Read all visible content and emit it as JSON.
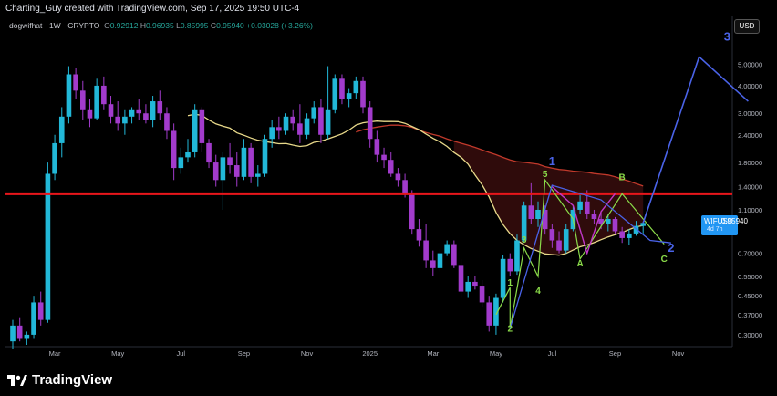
{
  "header": {
    "created_by": "Charting_Guy created with TradingView.com, Sep 17, 2025 19:50 UTC-4",
    "symbol": "dogwifhat · 1W · CRYPTO",
    "ohlc": {
      "o_label": "O",
      "o": "0.92912",
      "h_label": "H",
      "h": "0.96935",
      "l_label": "L",
      "l": "0.85995",
      "c_label": "C",
      "c": "0.95940",
      "change": "+0.03028 (+3.26%)"
    },
    "currency": "USD"
  },
  "price_tag": {
    "symbol": "WIFUSD",
    "price": "0.95940",
    "countdown": "4d 7h"
  },
  "footer": {
    "brand": "TradingView"
  },
  "colors": {
    "up": "#22b8d8",
    "down": "#a23bcc",
    "resistance": "#e8161b",
    "projection": "#4a63e8",
    "ma_fast": "#e8d98a",
    "ma_slow": "#c0392b",
    "wave_green": "#8bdc4a",
    "wave_magenta": "#c038c8"
  },
  "chart_data": {
    "type": "candlestick",
    "y_scale": "log",
    "ylim": [
      0.27,
      6.8
    ],
    "y_ticks": [
      "5.00000",
      "4.00000",
      "3.00000",
      "2.40000",
      "1.80000",
      "1.40000",
      "1.10000",
      "0.70000",
      "0.55000",
      "0.45000",
      "0.37000",
      "0.30000"
    ],
    "x_ticks": [
      "Mar",
      "May",
      "Jul",
      "Sep",
      "Nov",
      "2025",
      "Mar",
      "May",
      "Jul",
      "Sep",
      "Nov"
    ],
    "candles": [
      {
        "o": 0.28,
        "h": 0.35,
        "l": 0.26,
        "c": 0.33
      },
      {
        "o": 0.33,
        "h": 0.36,
        "l": 0.28,
        "c": 0.29
      },
      {
        "o": 0.29,
        "h": 0.31,
        "l": 0.27,
        "c": 0.3
      },
      {
        "o": 0.3,
        "h": 0.45,
        "l": 0.29,
        "c": 0.42
      },
      {
        "o": 0.42,
        "h": 0.47,
        "l": 0.33,
        "c": 0.35
      },
      {
        "o": 0.35,
        "h": 1.8,
        "l": 0.34,
        "c": 1.6
      },
      {
        "o": 1.6,
        "h": 2.4,
        "l": 1.5,
        "c": 2.2
      },
      {
        "o": 2.2,
        "h": 3.2,
        "l": 1.9,
        "c": 2.9
      },
      {
        "o": 2.9,
        "h": 4.9,
        "l": 2.7,
        "c": 4.5
      },
      {
        "o": 4.5,
        "h": 4.8,
        "l": 3.5,
        "c": 3.8
      },
      {
        "o": 3.8,
        "h": 4.2,
        "l": 2.8,
        "c": 3.1
      },
      {
        "o": 3.1,
        "h": 3.5,
        "l": 2.6,
        "c": 2.85
      },
      {
        "o": 2.85,
        "h": 4.3,
        "l": 2.8,
        "c": 4.0
      },
      {
        "o": 4.0,
        "h": 4.4,
        "l": 3.1,
        "c": 3.3
      },
      {
        "o": 3.3,
        "h": 3.6,
        "l": 2.7,
        "c": 2.9
      },
      {
        "o": 2.9,
        "h": 3.4,
        "l": 2.5,
        "c": 2.7
      },
      {
        "o": 2.7,
        "h": 3.1,
        "l": 2.4,
        "c": 2.9
      },
      {
        "o": 2.9,
        "h": 3.2,
        "l": 2.7,
        "c": 3.1
      },
      {
        "o": 3.1,
        "h": 3.5,
        "l": 2.8,
        "c": 3.0
      },
      {
        "o": 3.0,
        "h": 3.3,
        "l": 2.7,
        "c": 2.8
      },
      {
        "o": 2.8,
        "h": 3.6,
        "l": 2.6,
        "c": 3.4
      },
      {
        "o": 3.4,
        "h": 3.8,
        "l": 2.8,
        "c": 3.0
      },
      {
        "o": 3.0,
        "h": 3.2,
        "l": 2.3,
        "c": 2.5
      },
      {
        "o": 2.5,
        "h": 2.7,
        "l": 1.5,
        "c": 1.7
      },
      {
        "o": 1.7,
        "h": 2.1,
        "l": 1.6,
        "c": 1.9
      },
      {
        "o": 1.9,
        "h": 2.3,
        "l": 1.8,
        "c": 2.0
      },
      {
        "o": 2.0,
        "h": 3.3,
        "l": 1.9,
        "c": 3.1
      },
      {
        "o": 3.1,
        "h": 3.2,
        "l": 2.0,
        "c": 2.2
      },
      {
        "o": 2.2,
        "h": 2.3,
        "l": 1.7,
        "c": 1.8
      },
      {
        "o": 1.8,
        "h": 1.95,
        "l": 1.4,
        "c": 1.5
      },
      {
        "o": 1.5,
        "h": 2.0,
        "l": 1.1,
        "c": 1.9
      },
      {
        "o": 1.9,
        "h": 2.2,
        "l": 1.6,
        "c": 1.75
      },
      {
        "o": 1.75,
        "h": 2.0,
        "l": 1.4,
        "c": 1.55
      },
      {
        "o": 1.55,
        "h": 2.3,
        "l": 1.5,
        "c": 2.1
      },
      {
        "o": 2.1,
        "h": 2.2,
        "l": 1.45,
        "c": 1.55
      },
      {
        "o": 1.55,
        "h": 1.75,
        "l": 1.4,
        "c": 1.6
      },
      {
        "o": 1.6,
        "h": 2.4,
        "l": 1.55,
        "c": 2.3
      },
      {
        "o": 2.3,
        "h": 2.8,
        "l": 2.1,
        "c": 2.6
      },
      {
        "o": 2.6,
        "h": 2.9,
        "l": 2.3,
        "c": 2.5
      },
      {
        "o": 2.5,
        "h": 3.0,
        "l": 2.4,
        "c": 2.9
      },
      {
        "o": 2.9,
        "h": 3.1,
        "l": 2.5,
        "c": 2.7
      },
      {
        "o": 2.7,
        "h": 3.3,
        "l": 2.2,
        "c": 2.4
      },
      {
        "o": 2.4,
        "h": 3.0,
        "l": 2.3,
        "c": 2.85
      },
      {
        "o": 2.85,
        "h": 3.4,
        "l": 2.7,
        "c": 3.2
      },
      {
        "o": 3.2,
        "h": 3.5,
        "l": 2.2,
        "c": 2.4
      },
      {
        "o": 2.4,
        "h": 4.9,
        "l": 2.3,
        "c": 3.1
      },
      {
        "o": 3.1,
        "h": 4.5,
        "l": 3.0,
        "c": 4.3
      },
      {
        "o": 4.3,
        "h": 4.5,
        "l": 3.3,
        "c": 3.5
      },
      {
        "o": 3.5,
        "h": 3.9,
        "l": 3.2,
        "c": 3.7
      },
      {
        "o": 3.7,
        "h": 4.4,
        "l": 3.5,
        "c": 4.2
      },
      {
        "o": 4.2,
        "h": 4.4,
        "l": 3.0,
        "c": 3.2
      },
      {
        "o": 3.2,
        "h": 3.4,
        "l": 2.1,
        "c": 2.3
      },
      {
        "o": 2.3,
        "h": 2.5,
        "l": 1.8,
        "c": 1.95
      },
      {
        "o": 1.95,
        "h": 2.1,
        "l": 1.7,
        "c": 1.85
      },
      {
        "o": 1.85,
        "h": 2.0,
        "l": 1.55,
        "c": 1.6
      },
      {
        "o": 1.6,
        "h": 1.7,
        "l": 1.4,
        "c": 1.5
      },
      {
        "o": 1.5,
        "h": 1.6,
        "l": 1.25,
        "c": 1.3
      },
      {
        "o": 1.3,
        "h": 1.35,
        "l": 0.85,
        "c": 0.9
      },
      {
        "o": 0.9,
        "h": 1.0,
        "l": 0.75,
        "c": 0.8
      },
      {
        "o": 0.8,
        "h": 0.95,
        "l": 0.6,
        "c": 0.65
      },
      {
        "o": 0.65,
        "h": 0.72,
        "l": 0.55,
        "c": 0.6
      },
      {
        "o": 0.6,
        "h": 0.73,
        "l": 0.58,
        "c": 0.7
      },
      {
        "o": 0.7,
        "h": 0.8,
        "l": 0.68,
        "c": 0.77
      },
      {
        "o": 0.77,
        "h": 0.8,
        "l": 0.6,
        "c": 0.62
      },
      {
        "o": 0.62,
        "h": 0.66,
        "l": 0.44,
        "c": 0.47
      },
      {
        "o": 0.47,
        "h": 0.55,
        "l": 0.44,
        "c": 0.52
      },
      {
        "o": 0.52,
        "h": 0.55,
        "l": 0.48,
        "c": 0.5
      },
      {
        "o": 0.5,
        "h": 0.53,
        "l": 0.4,
        "c": 0.42
      },
      {
        "o": 0.42,
        "h": 0.45,
        "l": 0.31,
        "c": 0.33
      },
      {
        "o": 0.33,
        "h": 0.46,
        "l": 0.3,
        "c": 0.44
      },
      {
        "o": 0.44,
        "h": 0.69,
        "l": 0.42,
        "c": 0.66
      },
      {
        "o": 0.66,
        "h": 0.7,
        "l": 0.55,
        "c": 0.58
      },
      {
        "o": 0.58,
        "h": 0.85,
        "l": 0.56,
        "c": 0.8
      },
      {
        "o": 0.8,
        "h": 1.2,
        "l": 0.78,
        "c": 1.15
      },
      {
        "o": 1.15,
        "h": 1.45,
        "l": 0.95,
        "c": 1.0
      },
      {
        "o": 1.0,
        "h": 1.2,
        "l": 0.92,
        "c": 1.1
      },
      {
        "o": 1.1,
        "h": 1.15,
        "l": 0.85,
        "c": 0.9
      },
      {
        "o": 0.9,
        "h": 0.95,
        "l": 0.74,
        "c": 0.8
      },
      {
        "o": 0.8,
        "h": 0.88,
        "l": 0.7,
        "c": 0.72
      },
      {
        "o": 0.72,
        "h": 0.95,
        "l": 0.7,
        "c": 0.9
      },
      {
        "o": 0.9,
        "h": 1.15,
        "l": 0.88,
        "c": 1.1
      },
      {
        "o": 1.1,
        "h": 1.3,
        "l": 1.05,
        "c": 1.2
      },
      {
        "o": 1.2,
        "h": 1.35,
        "l": 1.0,
        "c": 1.05
      },
      {
        "o": 1.05,
        "h": 1.1,
        "l": 0.95,
        "c": 1.0
      },
      {
        "o": 1.0,
        "h": 1.08,
        "l": 0.9,
        "c": 0.95
      },
      {
        "o": 0.95,
        "h": 1.05,
        "l": 0.88,
        "c": 1.0
      },
      {
        "o": 1.0,
        "h": 1.02,
        "l": 0.86,
        "c": 0.88
      },
      {
        "o": 0.88,
        "h": 0.92,
        "l": 0.78,
        "c": 0.82
      },
      {
        "o": 0.82,
        "h": 0.9,
        "l": 0.76,
        "c": 0.86
      },
      {
        "o": 0.86,
        "h": 0.98,
        "l": 0.84,
        "c": 0.93
      },
      {
        "o": 0.93,
        "h": 0.97,
        "l": 0.86,
        "c": 0.96
      }
    ],
    "resistance_level": 1.3,
    "projection_path": [
      {
        "i": 90,
        "p": 0.96
      },
      {
        "i": 98,
        "p": 5.4
      },
      {
        "i": 105,
        "p": 3.4
      }
    ],
    "wave_labels": [
      {
        "text": "1",
        "i": 71,
        "p": 0.5,
        "color": "#8bdc4a"
      },
      {
        "text": "2",
        "i": 71,
        "p": 0.31,
        "color": "#8bdc4a"
      },
      {
        "text": "3",
        "i": 73,
        "p": 0.78,
        "color": "#8bdc4a"
      },
      {
        "text": "4",
        "i": 75,
        "p": 0.46,
        "color": "#8bdc4a"
      },
      {
        "text": "5",
        "i": 76,
        "p": 1.55,
        "color": "#8bdc4a"
      },
      {
        "text": "1",
        "i": 77,
        "p": 1.75,
        "color": "#4a63e8"
      },
      {
        "text": "A",
        "i": 81,
        "p": 0.61,
        "color": "#8bdc4a"
      },
      {
        "text": "B",
        "i": 87,
        "p": 1.5,
        "color": "#8bdc4a"
      },
      {
        "text": "C",
        "i": 93,
        "p": 0.64,
        "color": "#8bdc4a"
      },
      {
        "text": "2",
        "i": 94,
        "p": 0.71,
        "color": "#4a63e8"
      },
      {
        "text": "3",
        "i": 102,
        "p": 6.4,
        "color": "#4a63e8"
      }
    ]
  }
}
